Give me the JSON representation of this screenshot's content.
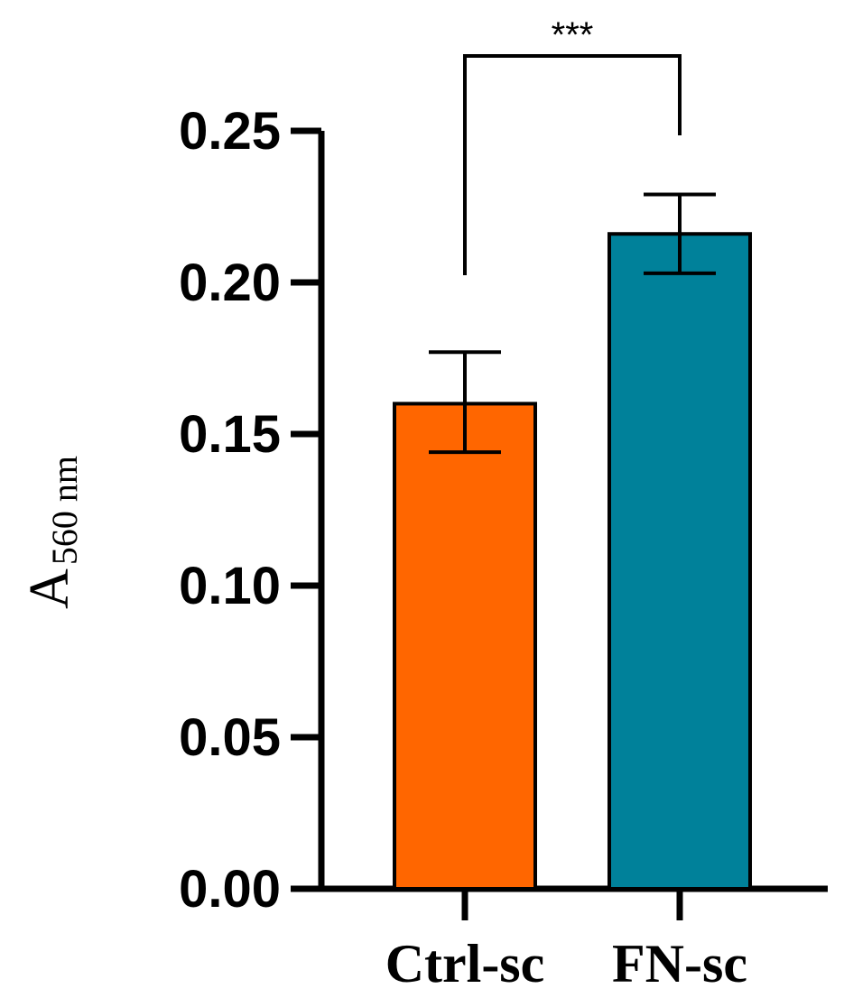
{
  "chart_data": {
    "type": "bar",
    "categories": [
      "Ctrl-sc",
      "FN-sc"
    ],
    "values": [
      0.16,
      0.216
    ],
    "errors": [
      [
        0.144,
        0.177
      ],
      [
        0.203,
        0.229
      ]
    ],
    "colors": [
      "#FF6600",
      "#00819A"
    ],
    "ylabel": {
      "main": "A",
      "sub": "560 nm"
    },
    "ylim": [
      0,
      0.25
    ],
    "yticks": [
      "0.00",
      "0.05",
      "0.10",
      "0.15",
      "0.20",
      "0.25"
    ],
    "significance": {
      "label": "***",
      "between": [
        "Ctrl-sc",
        "FN-sc"
      ]
    },
    "grid": false
  }
}
